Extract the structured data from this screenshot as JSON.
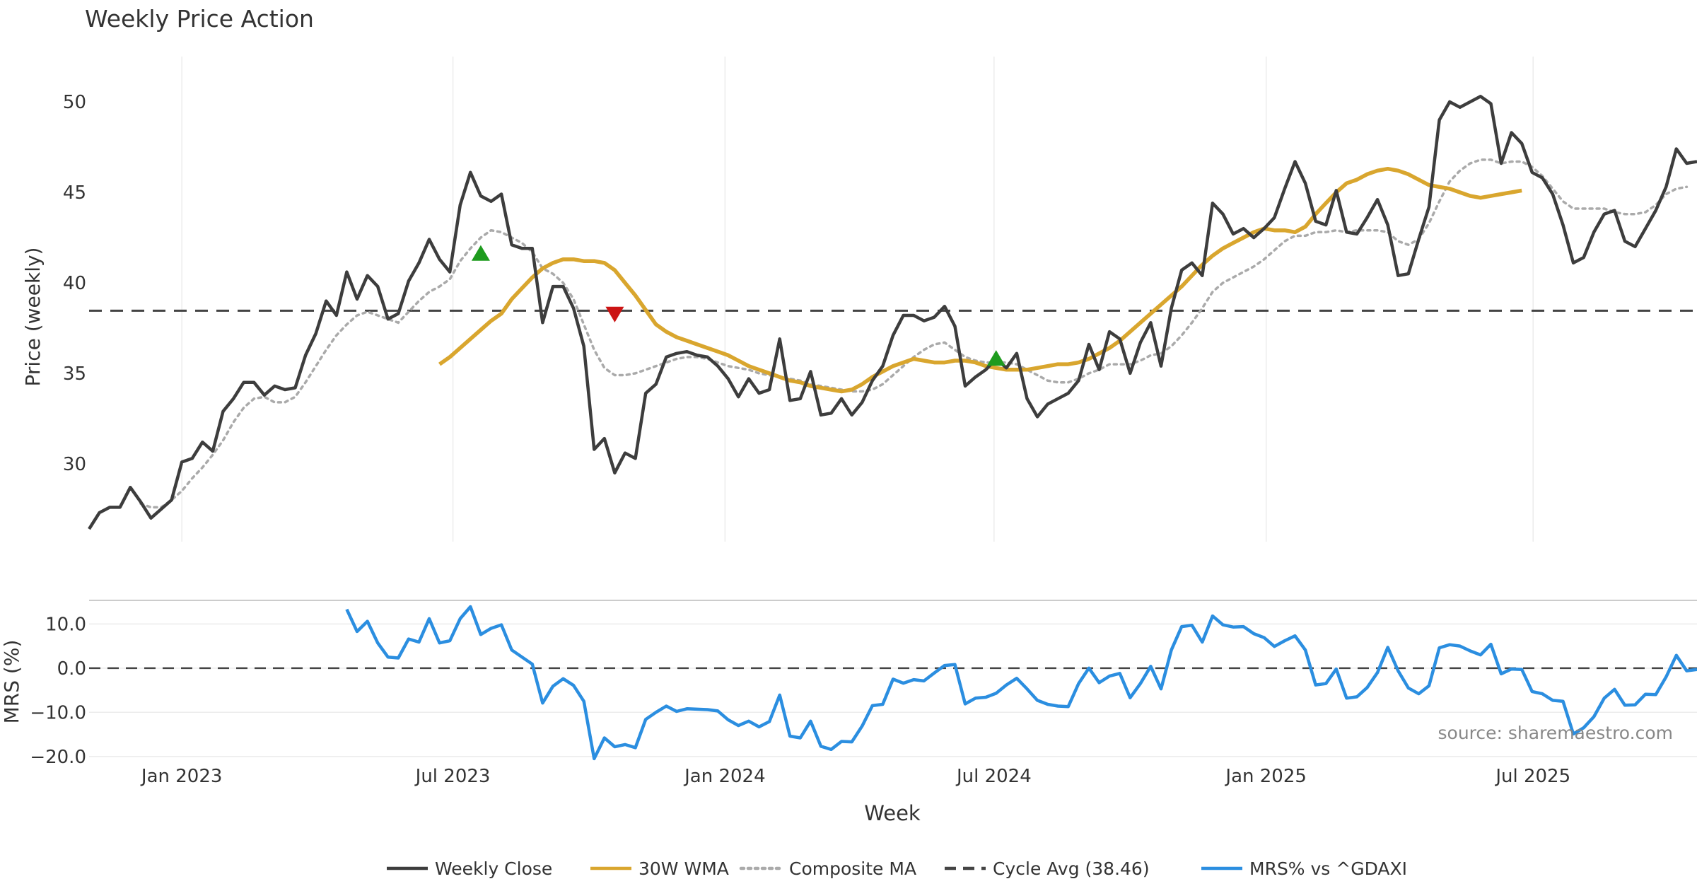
{
  "chart_data": [
    {
      "type": "line",
      "panel": "price",
      "title": "Weekly Price Action",
      "ylabel": "Price (weekly)",
      "ylim": [
        25.7,
        52.5
      ],
      "yticks": [
        30,
        35,
        40,
        45,
        50
      ],
      "grid": "vertical",
      "colors": {
        "close": "#3d3d3d",
        "wma": "#d9a62e",
        "composite": "#aaaaaa",
        "cycle": "#444444",
        "buy": "#1e9b1e",
        "sell": "#cc1414"
      },
      "series": [
        {
          "name": "Weekly Close",
          "values": [
            26.4,
            27.3,
            27.6,
            27.6,
            28.7,
            27.9,
            27.0,
            27.5,
            28.0,
            30.1,
            30.3,
            31.2,
            30.7,
            32.9,
            33.6,
            34.5,
            34.5,
            33.8,
            34.3,
            34.1,
            34.2,
            36.0,
            37.2,
            39.0,
            38.2,
            40.6,
            39.1,
            40.4,
            39.8,
            38.0,
            38.3,
            40.1,
            41.1,
            42.4,
            41.3,
            40.6,
            44.3,
            46.1,
            44.8,
            44.5,
            44.9,
            42.1,
            41.9,
            41.9,
            37.8,
            39.8,
            39.8,
            38.6,
            36.5,
            30.8,
            31.4,
            29.5,
            30.6,
            30.3,
            33.9,
            34.4,
            35.9,
            36.1,
            36.2,
            36.0,
            35.9,
            35.4,
            34.7,
            33.7,
            34.7,
            33.9,
            34.1,
            36.9,
            33.5,
            33.6,
            35.1,
            32.7,
            32.8,
            33.6,
            32.7,
            33.4,
            34.6,
            35.4,
            37.1,
            38.2,
            38.2,
            37.9,
            38.1,
            38.7,
            37.6,
            34.3,
            34.8,
            35.2,
            35.8,
            35.3,
            36.1,
            33.6,
            32.6,
            33.3,
            33.6,
            33.9,
            34.6,
            36.6,
            35.2,
            37.3,
            36.9,
            35.0,
            36.7,
            37.8,
            35.4,
            38.6,
            40.7,
            41.1,
            40.4,
            44.4,
            43.8,
            42.7,
            43.0,
            42.5,
            43.0,
            43.6,
            45.2,
            46.7,
            45.5,
            43.4,
            43.2,
            45.1,
            42.8,
            42.7,
            43.6,
            44.6,
            43.2,
            40.4,
            40.5,
            42.4,
            44.2,
            49.0,
            50.0,
            49.7,
            50.0,
            50.3,
            49.9,
            46.6,
            48.3,
            47.7,
            46.1,
            45.8,
            44.9,
            43.2,
            41.1,
            41.4,
            42.8,
            43.8,
            44.0,
            42.3,
            42.0,
            43.0,
            44.0,
            45.3,
            47.4,
            46.6,
            46.7
          ]
        },
        {
          "name": "30W WMA",
          "start_index": 34,
          "values": [
            35.5,
            35.9,
            36.4,
            36.9,
            37.4,
            37.9,
            38.3,
            39.1,
            39.7,
            40.3,
            40.8,
            41.1,
            41.3,
            41.3,
            41.2,
            41.2,
            41.1,
            40.7,
            40.0,
            39.3,
            38.5,
            37.7,
            37.3,
            37.0,
            36.8,
            36.6,
            36.4,
            36.2,
            36.0,
            35.7,
            35.4,
            35.2,
            35.0,
            34.8,
            34.6,
            34.5,
            34.3,
            34.2,
            34.1,
            34.0,
            34.1,
            34.4,
            34.8,
            35.1,
            35.4,
            35.6,
            35.8,
            35.7,
            35.6,
            35.6,
            35.7,
            35.7,
            35.6,
            35.4,
            35.3,
            35.2,
            35.2,
            35.2,
            35.3,
            35.4,
            35.5,
            35.5,
            35.6,
            35.8,
            36.1,
            36.4,
            36.8,
            37.3,
            37.8,
            38.3,
            38.8,
            39.3,
            39.8,
            40.4,
            41.0,
            41.5,
            41.9,
            42.2,
            42.5,
            42.8,
            43.0,
            42.9,
            42.9,
            42.8,
            43.1,
            43.8,
            44.4,
            45.0,
            45.5,
            45.7,
            46.0,
            46.2,
            46.3,
            46.2,
            46.0,
            45.7,
            45.4,
            45.3,
            45.2,
            45.0,
            44.8,
            44.7,
            44.8,
            44.9,
            45.0,
            45.1
          ]
        },
        {
          "name": "Composite MA",
          "values": [
            null,
            null,
            null,
            null,
            null,
            27.8,
            27.6,
            27.6,
            28.0,
            28.5,
            29.2,
            29.8,
            30.5,
            31.3,
            32.3,
            33.1,
            33.6,
            33.7,
            33.4,
            33.4,
            33.7,
            34.5,
            35.4,
            36.3,
            37.1,
            37.7,
            38.2,
            38.4,
            38.2,
            38.0,
            37.8,
            38.4,
            39.0,
            39.5,
            39.8,
            40.2,
            41.2,
            41.9,
            42.5,
            42.9,
            42.8,
            42.5,
            42.2,
            41.7,
            40.8,
            40.5,
            40.0,
            39.1,
            37.7,
            36.3,
            35.3,
            34.9,
            34.9,
            35.0,
            35.2,
            35.4,
            35.6,
            35.8,
            35.9,
            35.9,
            35.8,
            35.6,
            35.4,
            35.3,
            35.2,
            35.0,
            34.9,
            34.8,
            34.7,
            34.6,
            34.4,
            34.3,
            34.2,
            34.1,
            34.0,
            34.0,
            34.1,
            34.4,
            34.9,
            35.4,
            35.9,
            36.3,
            36.6,
            36.7,
            36.3,
            35.9,
            35.7,
            35.6,
            35.6,
            35.6,
            35.5,
            35.2,
            34.9,
            34.6,
            34.5,
            34.5,
            34.7,
            35.0,
            35.2,
            35.5,
            35.5,
            35.5,
            35.7,
            36.0,
            36.1,
            36.5,
            37.1,
            37.8,
            38.6,
            39.5,
            40.0,
            40.3,
            40.6,
            40.9,
            41.3,
            41.8,
            42.3,
            42.6,
            42.6,
            42.8,
            42.8,
            42.9,
            42.8,
            42.9,
            42.9,
            42.9,
            42.8,
            42.3,
            42.1,
            42.4,
            43.3,
            44.5,
            45.6,
            46.2,
            46.6,
            46.8,
            46.8,
            46.6,
            46.7,
            46.7,
            46.4,
            45.9,
            45.2,
            44.5,
            44.1,
            44.1,
            44.1,
            44.1,
            43.9,
            43.8,
            43.8,
            43.9,
            44.3,
            44.9,
            45.2,
            45.3
          ]
        },
        {
          "name": "Cycle Avg (38.46)",
          "value": 38.46
        }
      ],
      "markers": [
        {
          "type": "buy",
          "index": 38,
          "y": 41.6
        },
        {
          "type": "sell",
          "index": 51,
          "y": 38.3
        },
        {
          "type": "buy",
          "index": 88,
          "y": 35.8
        }
      ]
    },
    {
      "type": "line",
      "panel": "mrs",
      "ylabel": "MRS (%)",
      "xlabel": "Week",
      "ylim": [
        -21.0,
        15.5
      ],
      "yticks": [
        "10.0",
        "0.0",
        "−10.0",
        "−20.0"
      ],
      "ytick_values": [
        10,
        0,
        -10,
        -20
      ],
      "x_tick_labels": [
        "Jan 2023",
        "Jul 2023",
        "Jan 2024",
        "Jul 2024",
        "Jan 2025",
        "Jul 2025"
      ],
      "x_tick_index": [
        9,
        35.3,
        61.7,
        87.8,
        114.2,
        140.1
      ],
      "reference_line": 0,
      "color": "#2b8ee0",
      "series": [
        {
          "name": "MRS% vs ^GDAXI",
          "start_index": 25,
          "values": [
            13.3,
            8.3,
            10.6,
            5.7,
            2.5,
            2.3,
            6.6,
            5.9,
            11.2,
            5.7,
            6.2,
            11.2,
            13.9,
            7.6,
            9.0,
            9.8,
            4.1,
            2.5,
            0.9,
            -7.9,
            -4.1,
            -2.4,
            -3.9,
            -7.5,
            -20.5,
            -15.8,
            -17.8,
            -17.3,
            -18.0,
            -11.6,
            -10.0,
            -8.6,
            -9.8,
            -9.2,
            -9.3,
            -9.4,
            -9.7,
            -11.7,
            -13.0,
            -12.0,
            -13.3,
            -12.1,
            -6.1,
            -15.4,
            -15.8,
            -12.0,
            -17.7,
            -18.4,
            -16.6,
            -16.7,
            -13.1,
            -8.5,
            -8.2,
            -2.5,
            -3.4,
            -2.6,
            -2.9,
            -1.1,
            0.6,
            0.8,
            -8.1,
            -6.8,
            -6.6,
            -5.7,
            -3.8,
            -2.3,
            -4.7,
            -7.3,
            -8.2,
            -8.6,
            -8.7,
            -3.5,
            0.0,
            -3.3,
            -1.8,
            -1.2,
            -6.7,
            -3.5,
            0.4,
            -4.7,
            4.1,
            9.4,
            9.7,
            5.9,
            11.8,
            9.8,
            9.3,
            9.4,
            7.8,
            6.9,
            4.9,
            6.2,
            7.3,
            4.1,
            -3.8,
            -3.5,
            -0.2,
            -6.8,
            -6.5,
            -4.4,
            -1.0,
            4.7,
            -0.6,
            -4.5,
            -5.8,
            -4.0,
            4.6,
            5.3,
            5.0,
            3.9,
            3.0,
            5.4,
            -1.3,
            -0.2,
            -0.3,
            -5.3,
            -5.8,
            -7.3,
            -7.5,
            -14.9,
            -13.5,
            -11.0,
            -6.8,
            -4.8,
            -8.4,
            -8.3,
            -5.9,
            -6.0,
            -2.0,
            2.9,
            -0.6,
            -0.3
          ]
        }
      ],
      "annotation": "source: sharemaestro.com"
    }
  ],
  "legend": {
    "placement": "bottom-center",
    "items": [
      {
        "label": "Weekly Close",
        "style": "solid",
        "color": "#3d3d3d"
      },
      {
        "label": "30W WMA",
        "style": "solid",
        "color": "#d9a62e"
      },
      {
        "label": "Composite MA",
        "style": "dotted",
        "color": "#aaaaaa"
      },
      {
        "label": "Cycle Avg (38.46)",
        "style": "dashed",
        "color": "#444444"
      },
      {
        "label": "MRS% vs ^GDAXI",
        "style": "solid",
        "color": "#2b8ee0"
      }
    ]
  }
}
